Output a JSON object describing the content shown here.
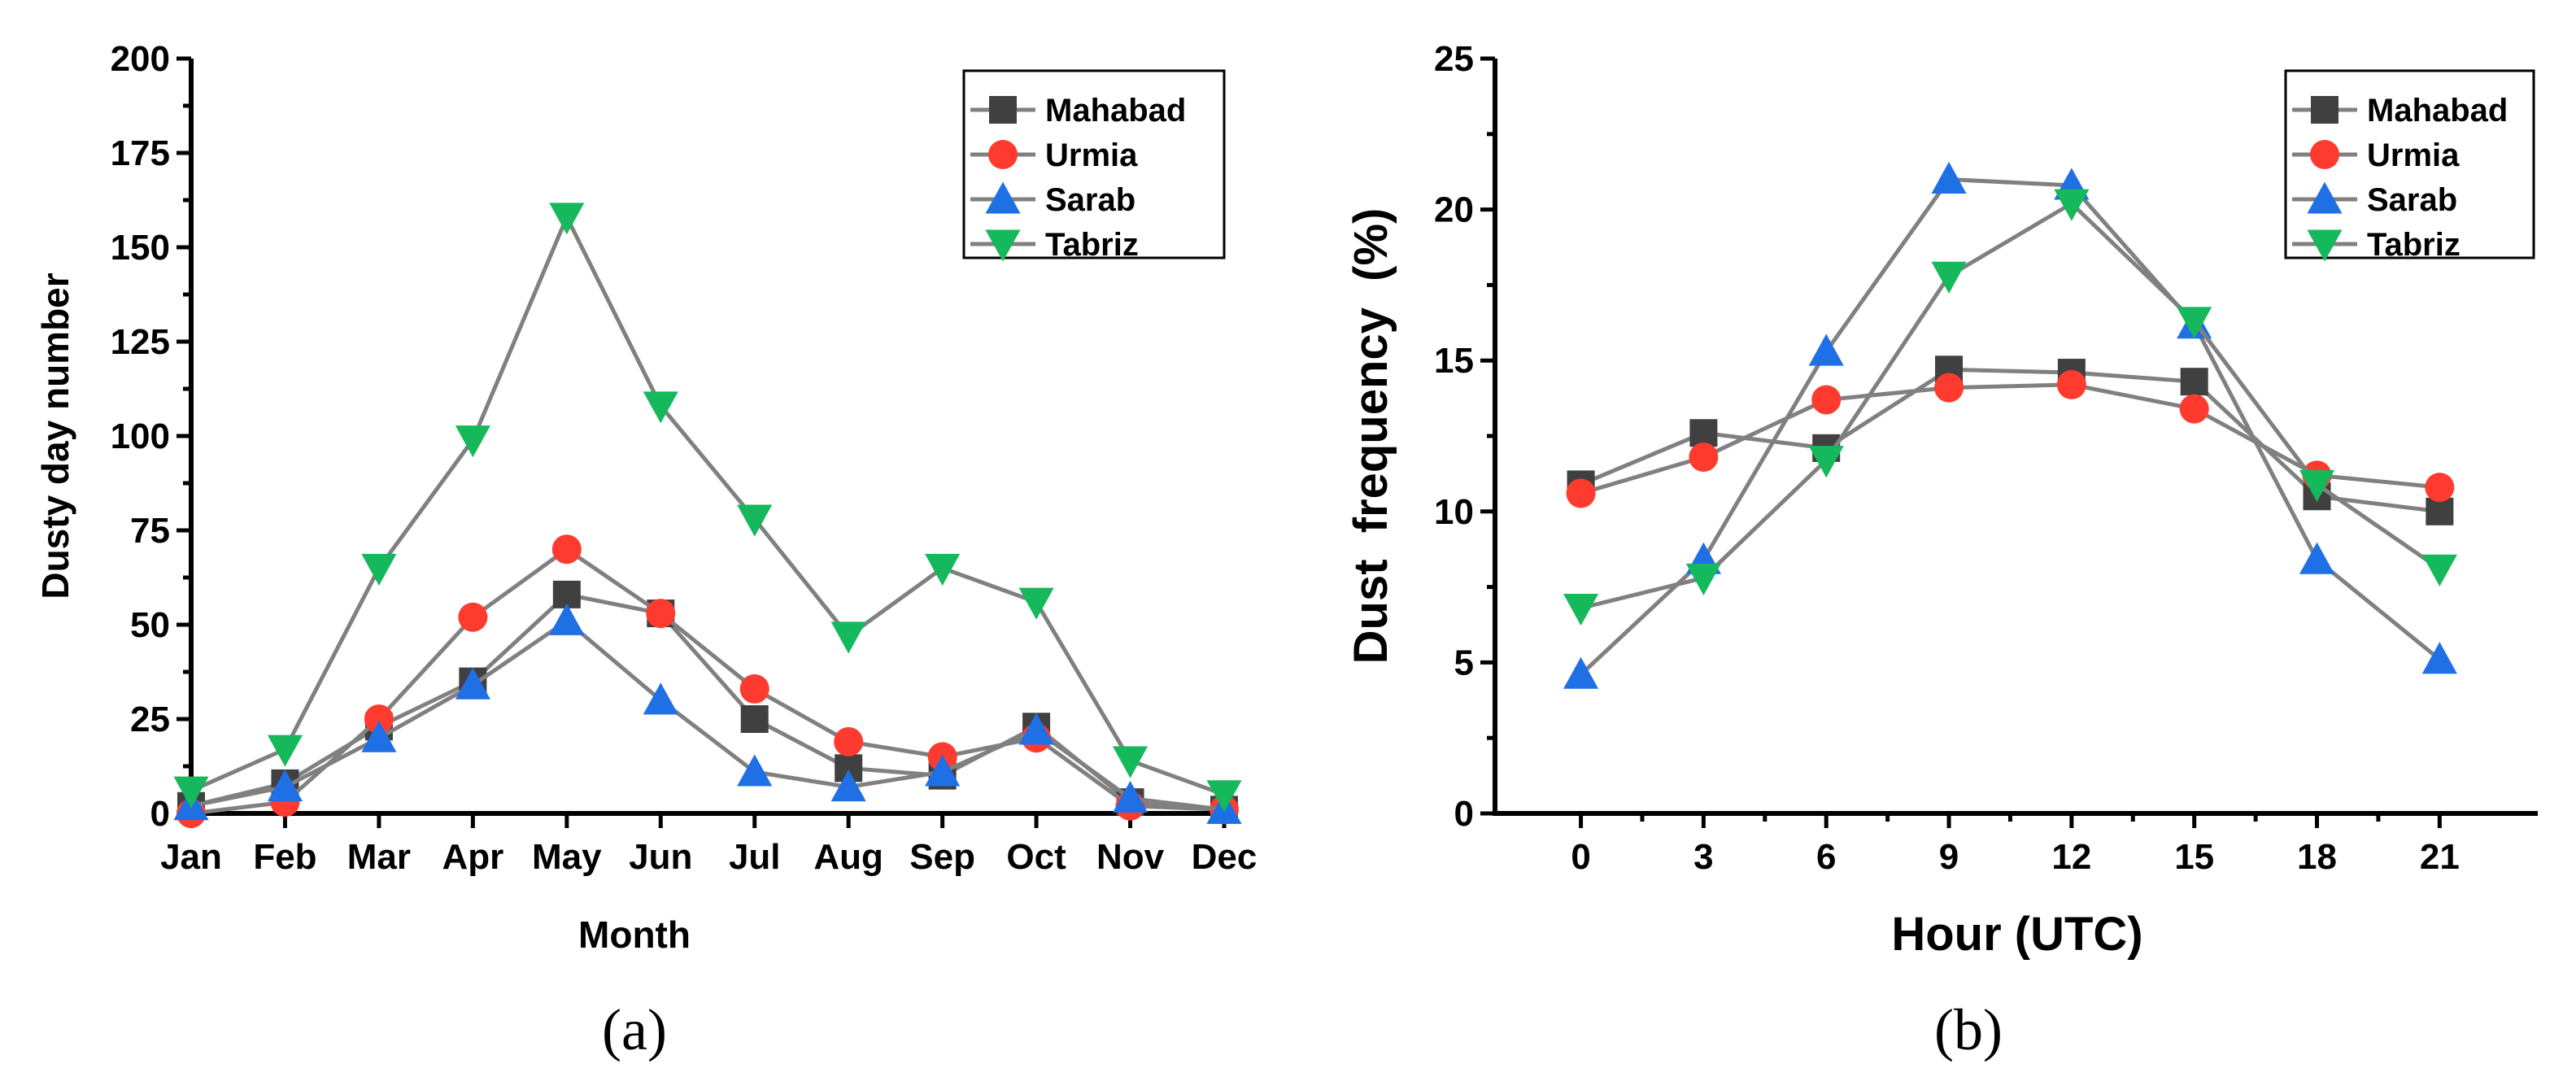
{
  "chart_data": [
    {
      "type": "line",
      "panel_label": "(a)",
      "categories": [
        "Jan",
        "Feb",
        "Mar",
        "Apr",
        "May",
        "Jun",
        "Jul",
        "Aug",
        "Sep",
        "Oct",
        "Nov",
        "Dec"
      ],
      "xlabel": "Month",
      "ylabel": "Dusty day number",
      "ylim": [
        0,
        200
      ],
      "yticks": [
        0,
        25,
        50,
        75,
        100,
        125,
        150,
        175,
        200
      ],
      "legend_position": "top-right",
      "series": [
        {
          "name": "Mahabad",
          "color": "#404040",
          "marker": "square",
          "values": [
            2,
            8,
            23,
            35,
            58,
            53,
            25,
            12,
            10,
            23,
            3,
            1
          ]
        },
        {
          "name": "Urmia",
          "color": "#ff3b30",
          "marker": "circle",
          "values": [
            0,
            3,
            25,
            52,
            70,
            53,
            33,
            19,
            15,
            20,
            2,
            1
          ]
        },
        {
          "name": "Sarab",
          "color": "#1f6fe5",
          "marker": "triangle-up",
          "values": [
            2,
            7,
            20,
            34,
            51,
            30,
            11,
            7,
            11,
            22,
            4,
            1
          ]
        },
        {
          "name": "Tabriz",
          "color": "#15b85a",
          "marker": "triangle-down",
          "values": [
            6,
            17,
            65,
            99,
            158,
            108,
            78,
            47,
            65,
            56,
            14,
            5
          ]
        }
      ]
    },
    {
      "type": "line",
      "panel_label": "(b)",
      "x": [
        0,
        3,
        6,
        9,
        12,
        15,
        18,
        21
      ],
      "xticks": [
        0,
        3,
        6,
        9,
        12,
        15,
        18,
        21
      ],
      "xlabel": "Hour (UTC)",
      "ylabel": "Dust  frequency  (%)",
      "ylim": [
        0,
        25
      ],
      "yticks": [
        0,
        5,
        10,
        15,
        20,
        25
      ],
      "legend_position": "top-right",
      "series": [
        {
          "name": "Mahabad",
          "color": "#404040",
          "marker": "square",
          "values": [
            10.9,
            12.6,
            12.1,
            14.7,
            14.6,
            14.3,
            10.5,
            10.0
          ]
        },
        {
          "name": "Urmia",
          "color": "#ff3b30",
          "marker": "circle",
          "values": [
            10.6,
            11.8,
            13.7,
            14.1,
            14.2,
            13.4,
            11.2,
            10.8
          ]
        },
        {
          "name": "Sarab",
          "color": "#1f6fe5",
          "marker": "triangle-up",
          "values": [
            4.6,
            8.4,
            15.3,
            21.0,
            20.8,
            16.2,
            8.4,
            5.1
          ]
        },
        {
          "name": "Tabriz",
          "color": "#15b85a",
          "marker": "triangle-down",
          "values": [
            6.8,
            7.8,
            11.7,
            17.8,
            20.2,
            16.3,
            10.9,
            8.1
          ]
        }
      ]
    }
  ]
}
